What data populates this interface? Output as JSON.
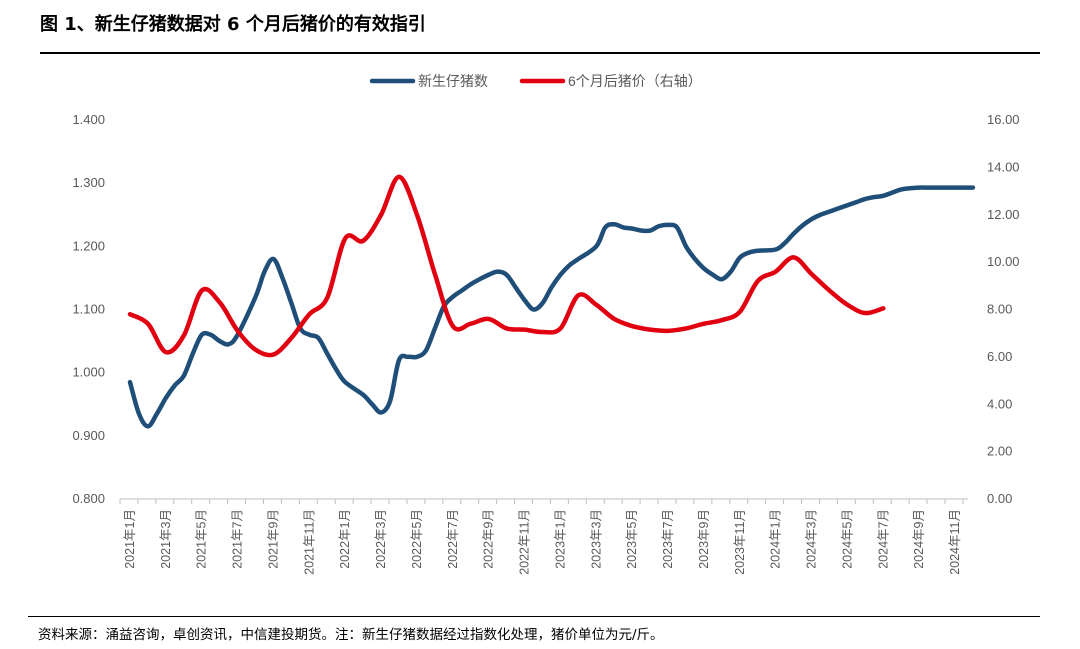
{
  "figure": {
    "title": "图 1、新生仔猪数据对 6 个月后猪价的有效指引",
    "source": "资料来源：涌益咨询，卓创资讯，中信建投期货。注：新生仔猪数据经过指数化处理，猪价单位为元/斤。"
  },
  "colors": {
    "primary": "#1f4e79",
    "secondary": "#e0000f"
  },
  "chart_data": {
    "type": "line",
    "x_ticks": [
      "2021年1月",
      "2021年3月",
      "2021年5月",
      "2021年7月",
      "2021年9月",
      "2021年11月",
      "2022年1月",
      "2022年3月",
      "2022年5月",
      "2022年7月",
      "2022年9月",
      "2022年11月",
      "2023年1月",
      "2023年3月",
      "2023年5月",
      "2023年7月",
      "2023年9月",
      "2023年11月",
      "2024年1月",
      "2024年3月",
      "2024年5月",
      "2024年7月",
      "2024年9月",
      "2024年11月"
    ],
    "y_left": {
      "ylim": [
        0.8,
        1.4
      ],
      "ticks": [
        "0.800",
        "0.900",
        "1.000",
        "1.100",
        "1.200",
        "1.300",
        "1.400"
      ]
    },
    "y_right": {
      "ylim": [
        0,
        16
      ],
      "ticks": [
        "0.00",
        "2.00",
        "4.00",
        "6.00",
        "8.00",
        "10.00",
        "12.00",
        "14.00",
        "16.00"
      ]
    },
    "grid": false,
    "legend": "top-center",
    "series": [
      {
        "name": "新生仔猪数",
        "axis": "left",
        "color": "#1f4e79",
        "x": [
          "2021-01",
          "2021-01",
          "2021-02",
          "2021-02",
          "2021-03",
          "2021-03",
          "2021-04",
          "2021-04",
          "2021-05",
          "2021-05",
          "2021-06",
          "2021-06",
          "2021-07",
          "2021-08",
          "2021-08",
          "2021-09",
          "2021-09",
          "2021-10",
          "2021-10",
          "2021-11",
          "2021-11",
          "2021-12",
          "2021-12",
          "2022-01",
          "2022-02",
          "2022-02",
          "2022-03",
          "2022-03",
          "2022-04",
          "2022-04",
          "2022-05",
          "2022-05",
          "2022-06",
          "2022-06",
          "2022-07",
          "2022-07",
          "2022-08",
          "2022-08",
          "2022-09",
          "2022-09",
          "2022-10",
          "2022-10",
          "2022-11",
          "2022-11",
          "2022-12",
          "2022-12",
          "2023-01",
          "2023-01",
          "2023-02",
          "2023-03",
          "2023-03",
          "2023-04",
          "2023-04",
          "2023-05",
          "2023-05",
          "2023-06",
          "2023-06",
          "2023-07",
          "2023-07",
          "2023-08",
          "2023-08",
          "2023-09",
          "2023-09",
          "2023-10",
          "2023-10",
          "2023-11",
          "2023-11",
          "2023-12",
          "2024-01",
          "2024-01",
          "2024-02",
          "2024-02",
          "2024-03",
          "2024-03",
          "2024-04",
          "2024-04",
          "2024-05",
          "2024-05",
          "2024-06",
          "2024-06",
          "2024-07",
          "2024-07",
          "2024-08",
          "2024-08",
          "2024-09",
          "2024-09",
          "2024-10",
          "2024-10",
          "2024-11",
          "2024-11",
          "2024-12"
        ],
        "values": [
          0.985,
          0.935,
          0.915,
          0.935,
          0.96,
          0.98,
          0.995,
          1.03,
          1.06,
          1.06,
          1.05,
          1.045,
          1.06,
          1.12,
          1.16,
          1.18,
          1.15,
          1.11,
          1.07,
          1.06,
          1.055,
          1.03,
          1.005,
          0.985,
          0.965,
          0.95,
          0.937,
          0.955,
          1.02,
          1.025,
          1.025,
          1.035,
          1.07,
          1.105,
          1.12,
          1.13,
          1.14,
          1.148,
          1.155,
          1.16,
          1.155,
          1.135,
          1.115,
          1.1,
          1.11,
          1.135,
          1.155,
          1.17,
          1.18,
          1.2,
          1.23,
          1.235,
          1.23,
          1.228,
          1.225,
          1.225,
          1.232,
          1.234,
          1.23,
          1.2,
          1.18,
          1.165,
          1.155,
          1.148,
          1.16,
          1.182,
          1.19,
          1.193,
          1.195,
          1.205,
          1.22,
          1.233,
          1.243,
          1.25,
          1.255,
          1.26,
          1.265,
          1.27,
          1.275,
          1.278,
          1.28,
          1.285,
          1.29,
          1.292,
          1.293,
          1.293,
          1.293,
          1.293,
          1.293,
          1.293,
          1.293
        ]
      },
      {
        "name": "6个月后猪价（右轴）",
        "axis": "right",
        "color": "#e0000f",
        "x": [
          "2021-01",
          "2021-02",
          "2021-03",
          "2021-04",
          "2021-05",
          "2021-06",
          "2021-07",
          "2021-08",
          "2021-09",
          "2021-10",
          "2021-11",
          "2021-12",
          "2022-01",
          "2022-02",
          "2022-03",
          "2022-04",
          "2022-05",
          "2022-06",
          "2022-07",
          "2022-08",
          "2022-09",
          "2022-10",
          "2022-11",
          "2022-12",
          "2023-01",
          "2023-02",
          "2023-03",
          "2023-04",
          "2023-05",
          "2023-06",
          "2023-07",
          "2023-08",
          "2023-09",
          "2023-10",
          "2023-11",
          "2023-12",
          "2024-01",
          "2024-02",
          "2024-03",
          "2024-04",
          "2024-05",
          "2024-06",
          "2024-07"
        ],
        "values": [
          7.8,
          7.4,
          6.2,
          6.9,
          8.8,
          8.3,
          7.1,
          6.3,
          6.1,
          6.8,
          7.8,
          8.5,
          11.0,
          10.9,
          12.0,
          13.6,
          12.0,
          9.5,
          7.3,
          7.4,
          7.6,
          7.2,
          7.15,
          7.05,
          7.2,
          8.6,
          8.2,
          7.6,
          7.3,
          7.15,
          7.1,
          7.2,
          7.4,
          7.55,
          7.9,
          9.2,
          9.6,
          10.2,
          9.5,
          8.8,
          8.2,
          7.85,
          8.05
        ]
      }
    ]
  }
}
